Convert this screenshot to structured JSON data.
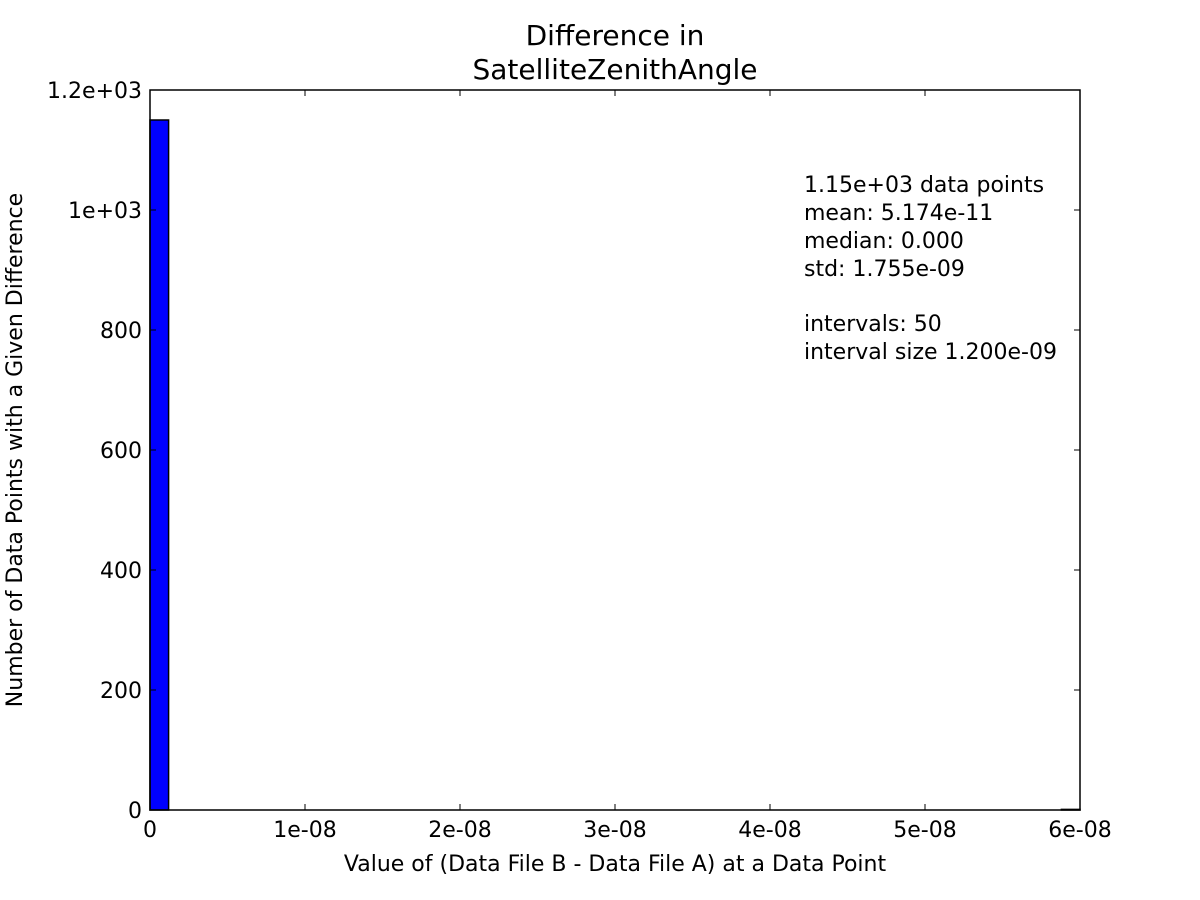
{
  "chart_data": {
    "type": "bar",
    "title_lines": [
      "Difference in",
      "SatelliteZenithAngle"
    ],
    "xlabel": "Value of (Data File B - Data File A) at a Data Point",
    "ylabel": "Number of Data Points with a Given Difference",
    "xlim": [
      0,
      6e-08
    ],
    "ylim": [
      0,
      1200
    ],
    "xticks": [
      {
        "value": 0,
        "label": "0"
      },
      {
        "value": 1e-08,
        "label": "1e-08"
      },
      {
        "value": 2e-08,
        "label": "2e-08"
      },
      {
        "value": 3e-08,
        "label": "3e-08"
      },
      {
        "value": 4e-08,
        "label": "4e-08"
      },
      {
        "value": 5e-08,
        "label": "5e-08"
      },
      {
        "value": 6e-08,
        "label": "6e-08"
      }
    ],
    "yticks": [
      {
        "value": 0,
        "label": "0"
      },
      {
        "value": 200,
        "label": "200"
      },
      {
        "value": 400,
        "label": "400"
      },
      {
        "value": 600,
        "label": "600"
      },
      {
        "value": 800,
        "label": "800"
      },
      {
        "value": 1000,
        "label": "1e+03"
      },
      {
        "value": 1200,
        "label": "1.2e+03"
      }
    ],
    "bins": [
      {
        "start": 0,
        "end": 1.2e-09,
        "count": 1150
      },
      {
        "start": 5.88e-08,
        "end": 6e-08,
        "count": 1
      }
    ],
    "bar_color": "#0000ff",
    "grid": false,
    "stats_lines": [
      "1.15e+03 data points",
      "mean: 5.174e-11",
      "median: 0.000",
      "std: 1.755e-09",
      "",
      "intervals: 50",
      "interval size 1.200e-09"
    ]
  }
}
